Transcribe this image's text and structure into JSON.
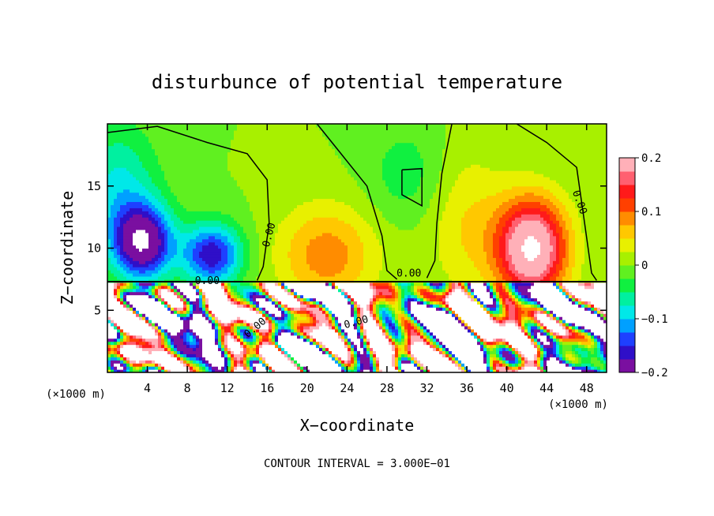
{
  "chart_data": {
    "type": "heatmap",
    "title": "disturbunce of potential temperature",
    "xlabel": "X−coordinate",
    "ylabel": "Z−coordinate",
    "x_unit": "(×1000 m)",
    "x_unit_right": "(×1000 m)",
    "footer": "CONTOUR INTERVAL = 3.000E−01",
    "xlim": [
      0,
      50
    ],
    "ylim": [
      0,
      20
    ],
    "x_ticks": [
      4,
      8,
      12,
      16,
      20,
      24,
      28,
      32,
      36,
      40,
      44,
      48
    ],
    "y_ticks": [
      5,
      10,
      15
    ],
    "colorbar": {
      "range": [
        -0.2,
        0.2
      ],
      "ticks": [
        {
          "value": 0.2,
          "label": "0.2"
        },
        {
          "value": 0.1,
          "label": "0.1"
        },
        {
          "value": 0.0,
          "label": "0"
        },
        {
          "value": -0.1,
          "label": "−0.1"
        },
        {
          "value": -0.2,
          "label": "−0.2"
        }
      ],
      "colors": [
        "#7a0fa0",
        "#2f0fc8",
        "#1e40ff",
        "#00a0ff",
        "#00e8e8",
        "#00f0a0",
        "#10f040",
        "#60f020",
        "#a8f000",
        "#e8f000",
        "#ffc800",
        "#ff8c00",
        "#ff4000",
        "#ff1a1a",
        "#ff6070",
        "#ffb0b8"
      ]
    },
    "contour_labels": [
      {
        "text": "0.00",
        "x": 16.5,
        "z": 11.0,
        "rotate": -75
      },
      {
        "text": "0.00",
        "x": 47.0,
        "z": 13.6,
        "rotate": 70
      },
      {
        "text": "0.00",
        "x": 10.0,
        "z": 7.1,
        "rotate": 0
      },
      {
        "text": "0.00",
        "x": 30.2,
        "z": 7.7,
        "rotate": 0
      },
      {
        "text": "0.00",
        "x": 15.0,
        "z": 3.4,
        "rotate": -40
      },
      {
        "text": "0.00",
        "x": 25.0,
        "z": 3.8,
        "rotate": -15
      }
    ],
    "upper_field": {
      "base": 0.0,
      "features": [
        {
          "x": 3.5,
          "z": 10.5,
          "sx": 3.0,
          "sz": 3.0,
          "amp": -0.22
        },
        {
          "x": 10.5,
          "z": 9.5,
          "sx": 3.0,
          "sz": 2.5,
          "amp": -0.17
        },
        {
          "x": 1.0,
          "z": 15.0,
          "sx": 4.0,
          "sz": 5.0,
          "amp": -0.08
        },
        {
          "x": 42.5,
          "z": 10.0,
          "sx": 3.5,
          "sz": 4.0,
          "amp": 0.24
        },
        {
          "x": 22.0,
          "z": 9.5,
          "sx": 5.0,
          "sz": 4.0,
          "amp": 0.09
        },
        {
          "x": 36.0,
          "z": 12.0,
          "sx": 4.0,
          "sz": 6.0,
          "amp": 0.05
        },
        {
          "x": 30.0,
          "z": 16.0,
          "sx": 4.0,
          "sz": 4.0,
          "amp": -0.04
        }
      ]
    },
    "lower_field": {
      "top_z": 7.3,
      "noise_seed": 7
    }
  }
}
